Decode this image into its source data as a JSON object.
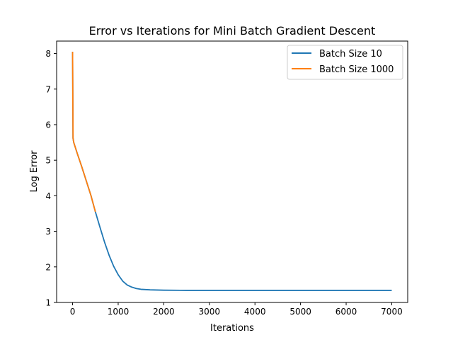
{
  "chart_data": {
    "type": "line",
    "title": "Error vs Iterations for Mini Batch Gradient Descent",
    "xlabel": "Iterations",
    "ylabel": "Log Error",
    "xlim": [
      -350,
      7350
    ],
    "ylim": [
      1,
      8.35
    ],
    "xticks": [
      0,
      1000,
      2000,
      3000,
      4000,
      5000,
      6000,
      7000
    ],
    "yticks": [
      1,
      2,
      3,
      4,
      5,
      6,
      7,
      8
    ],
    "grid": false,
    "legend_position": "top-right",
    "series": [
      {
        "name": "Batch Size 10",
        "color": "#1f77b4",
        "points": [
          [
            0,
            8.05
          ],
          [
            10,
            5.62
          ],
          [
            25,
            5.5
          ],
          [
            100,
            5.2
          ],
          [
            200,
            4.82
          ],
          [
            300,
            4.42
          ],
          [
            400,
            4.02
          ],
          [
            500,
            3.55
          ],
          [
            600,
            3.12
          ],
          [
            700,
            2.7
          ],
          [
            800,
            2.33
          ],
          [
            900,
            2.02
          ],
          [
            1000,
            1.78
          ],
          [
            1100,
            1.6
          ],
          [
            1200,
            1.49
          ],
          [
            1300,
            1.43
          ],
          [
            1400,
            1.39
          ],
          [
            1500,
            1.37
          ],
          [
            1700,
            1.355
          ],
          [
            2000,
            1.345
          ],
          [
            2500,
            1.34
          ],
          [
            3000,
            1.34
          ],
          [
            4000,
            1.34
          ],
          [
            5000,
            1.34
          ],
          [
            6000,
            1.34
          ],
          [
            7000,
            1.34
          ]
        ]
      },
      {
        "name": "Batch Size 1000",
        "color": "#ff7f0e",
        "points": [
          [
            0,
            8.05
          ],
          [
            10,
            5.62
          ],
          [
            25,
            5.5
          ],
          [
            100,
            5.2
          ],
          [
            200,
            4.82
          ],
          [
            300,
            4.42
          ],
          [
            400,
            4.02
          ],
          [
            500,
            3.55
          ]
        ]
      }
    ]
  }
}
